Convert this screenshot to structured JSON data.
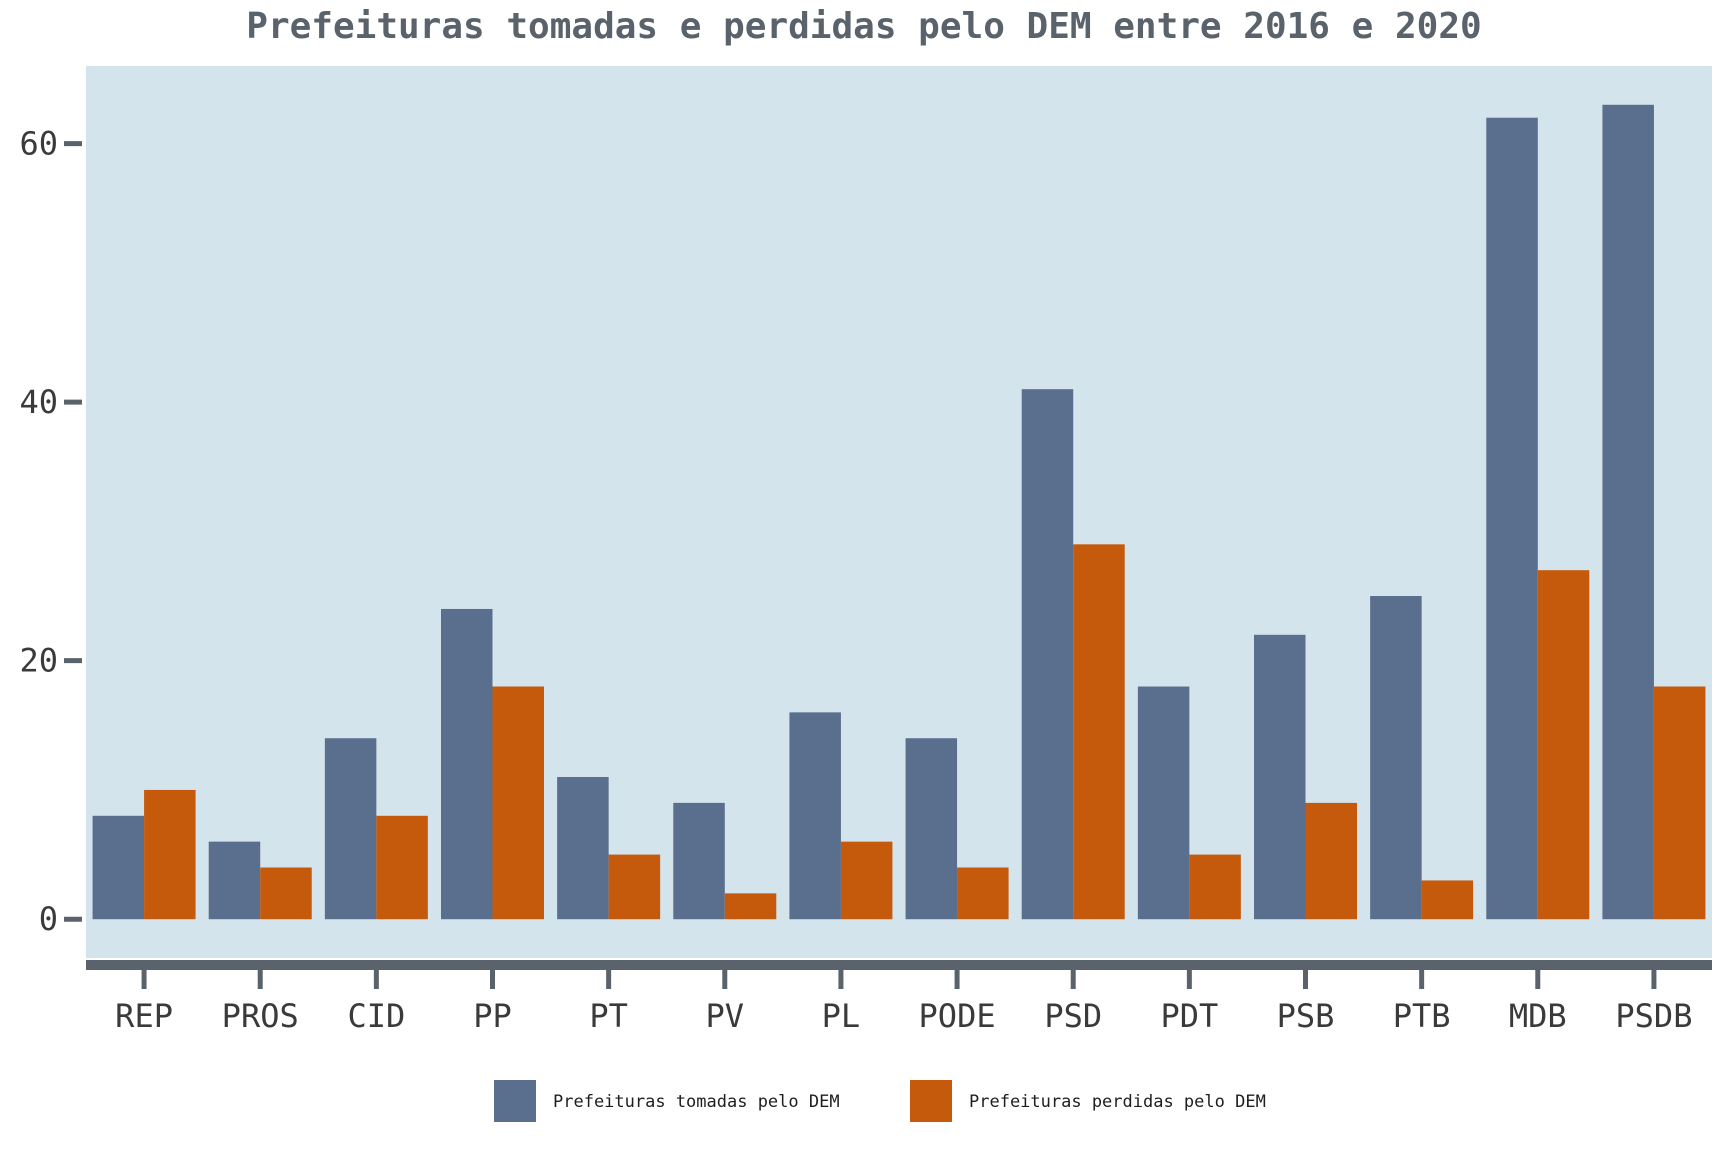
{
  "chart_data": {
    "type": "bar",
    "title": "Prefeituras tomadas e perdidas pelo DEM entre 2016 e 2020",
    "xlabel": "",
    "ylabel": "",
    "categories": [
      "REP",
      "PROS",
      "CID",
      "PP",
      "PT",
      "PV",
      "PL",
      "PODE",
      "PSD",
      "PDT",
      "PSB",
      "PTB",
      "MDB",
      "PSDB"
    ],
    "series": [
      {
        "name": "Prefeituras tomadas pelo DEM",
        "color": "#5a6e8e",
        "values": [
          8,
          6,
          14,
          24,
          11,
          9,
          16,
          14,
          41,
          18,
          22,
          25,
          62,
          63
        ]
      },
      {
        "name": "Prefeituras perdidas pelo DEM",
        "color": "#c55a0c",
        "values": [
          10,
          4,
          8,
          18,
          5,
          2,
          6,
          4,
          29,
          5,
          9,
          3,
          27,
          18
        ]
      }
    ],
    "yticks": [
      0,
      20,
      40,
      60
    ],
    "ylim": [
      -3,
      66
    ],
    "grid": false,
    "legend_position": "bottom-center",
    "plot_background": "#d4e4ec",
    "axis_color": "#5a636b"
  }
}
